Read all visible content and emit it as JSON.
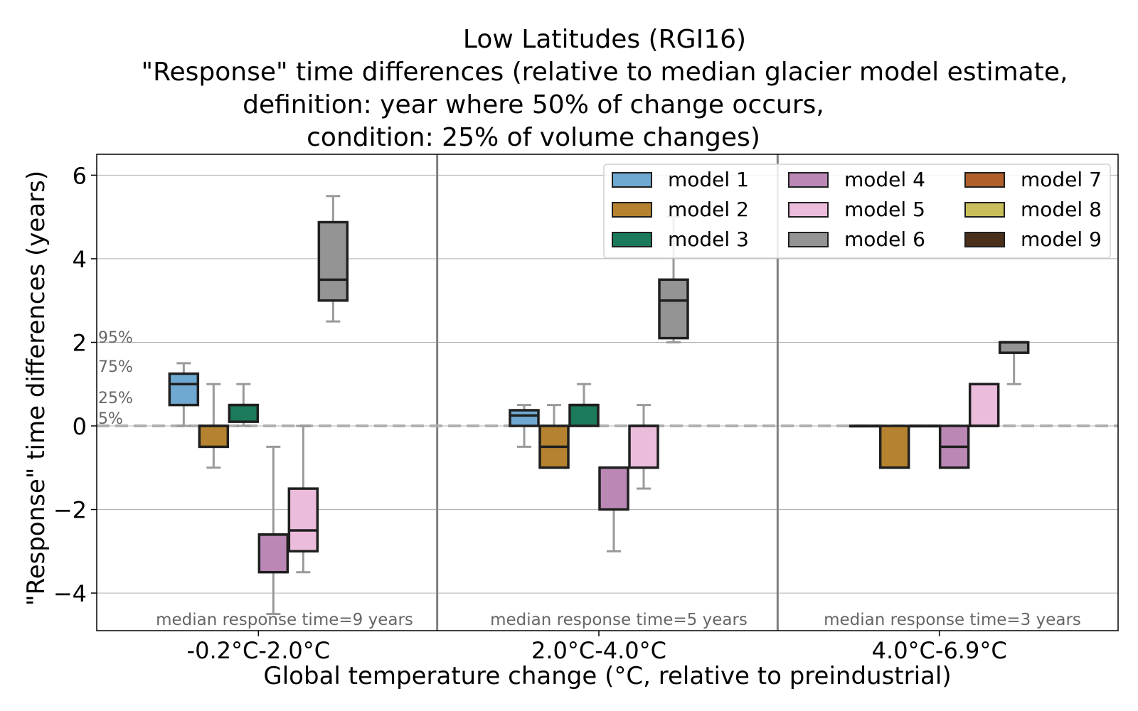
{
  "chart_data": {
    "type": "box",
    "title_lines": [
      "Low Latitudes (RGI16)",
      "\"Response\" time differences (relative to median glacier model estimate,",
      "definition: year where 50% of change occurs,",
      "condition: 25% of volume changes)"
    ],
    "xlabel": "Global temperature change (°C, relative to preindustrial)",
    "ylabel": "\"Response\" time differences (years)",
    "ylim": [
      -4.9,
      6.5
    ],
    "yticks": [
      -4,
      -2,
      0,
      2,
      4,
      6
    ],
    "ytick_labels": [
      "−4",
      "−2",
      "0",
      "2",
      "4",
      "6"
    ],
    "grid": true,
    "zero_line": "dashed",
    "legend_placement": "top-right",
    "legend_columns": 3,
    "percentile_labels": [
      "95%",
      "75%",
      "25%",
      "5%"
    ],
    "categories": [
      "-0.2°C-2.0°C",
      "2.0°C-4.0°C",
      "4.0°C-6.9°C"
    ],
    "annotations": [
      "median response time=9 years",
      "median response time=5 years",
      "median response time=3 years"
    ],
    "series": [
      {
        "name": "model 1",
        "color": "#6fa8d0",
        "boxes": [
          {
            "whislo": 0,
            "q1": 0.5,
            "med": 1.0,
            "q3": 1.25,
            "whishi": 1.5
          },
          {
            "whislo": -0.5,
            "q1": 0,
            "med": 0.25,
            "q3": 0.375,
            "whishi": 0.5
          },
          {
            "whislo": 0,
            "q1": 0,
            "med": 0,
            "q3": 0,
            "whishi": 0
          }
        ]
      },
      {
        "name": "model 2",
        "color": "#b5822f",
        "boxes": [
          {
            "whislo": -1,
            "q1": -0.5,
            "med": 0,
            "q3": 0,
            "whishi": 1
          },
          {
            "whislo": -1,
            "q1": -1,
            "med": -0.5,
            "q3": 0,
            "whishi": 0.5
          },
          {
            "whislo": -1,
            "q1": -1,
            "med": -1,
            "q3": 0,
            "whishi": 0
          }
        ]
      },
      {
        "name": "model 3",
        "color": "#1c7a5c",
        "boxes": [
          {
            "whislo": 0,
            "q1": 0.1,
            "med": 0.5,
            "q3": 0.5,
            "whishi": 1
          },
          {
            "whislo": 0,
            "q1": 0,
            "med": 0.5,
            "q3": 0.5,
            "whishi": 1
          },
          {
            "whislo": 0,
            "q1": 0,
            "med": 0,
            "q3": 0,
            "whishi": 0
          }
        ]
      },
      {
        "name": "model 4",
        "color": "#bb88b6",
        "boxes": [
          {
            "whislo": -4.5,
            "q1": -3.5,
            "med": -2.6,
            "q3": -2.6,
            "whishi": -0.5
          },
          {
            "whislo": -3,
            "q1": -2,
            "med": -1,
            "q3": -1,
            "whishi": -1
          },
          {
            "whislo": -1,
            "q1": -1,
            "med": -0.5,
            "q3": 0,
            "whishi": 0
          }
        ]
      },
      {
        "name": "model 5",
        "color": "#ebbcdb",
        "boxes": [
          {
            "whislo": -3.5,
            "q1": -3,
            "med": -2.5,
            "q3": -1.5,
            "whishi": 0
          },
          {
            "whislo": -1.5,
            "q1": -1,
            "med": 0,
            "q3": 0,
            "whishi": 0.5
          },
          {
            "whislo": 0,
            "q1": 0,
            "med": 0,
            "q3": 1,
            "whishi": 1
          }
        ]
      },
      {
        "name": "model 6",
        "color": "#949494",
        "boxes": [
          {
            "whislo": 2.5,
            "q1": 3,
            "med": 3.5,
            "q3": 4.875,
            "whishi": 5.5
          },
          {
            "whislo": 2,
            "q1": 2.1,
            "med": 3,
            "q3": 3.5,
            "whishi": 5
          },
          {
            "whislo": 1,
            "q1": 1.75,
            "med": 2,
            "q3": 2,
            "whishi": 2
          }
        ]
      },
      {
        "name": "model 7",
        "color": "#b05f2b",
        "boxes": []
      },
      {
        "name": "model 8",
        "color": "#c9bf5a",
        "boxes": []
      },
      {
        "name": "model 9",
        "color": "#4a2f1a",
        "boxes": []
      }
    ]
  }
}
